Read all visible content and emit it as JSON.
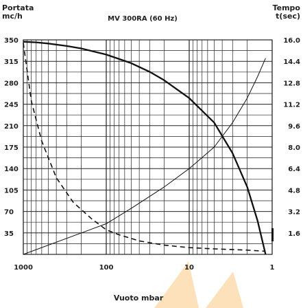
{
  "chart_data": {
    "type": "line",
    "title": "MV 300RA (60 Hz)",
    "y_left_label": [
      "Portata",
      "mc/h"
    ],
    "y_right_label": [
      "Tempo",
      "t(sec)"
    ],
    "xlabel": "Vuoto mbar",
    "x_scale": "log",
    "x_reversed": true,
    "xlim": [
      1000,
      1
    ],
    "ylim_left": [
      0,
      350
    ],
    "ylim_right": [
      0,
      16
    ],
    "x_tick_labels": [
      "1000",
      "100",
      "10",
      "1"
    ],
    "y_left_tick_labels": [
      "350",
      "315",
      "280",
      "245",
      "210",
      "175",
      "140",
      "105",
      "70",
      "35"
    ],
    "y_right_tick_labels": [
      "16.0",
      "14.4",
      "12.8",
      "11.2",
      "9.6",
      "8.0",
      "6.4",
      "4.8",
      "3.2",
      "1.6"
    ],
    "grid": true,
    "series": [
      {
        "axis": "left",
        "style": "solid",
        "x": [
          1000,
          700,
          500,
          300,
          200,
          100,
          50,
          30,
          20,
          10,
          5,
          3,
          2,
          1.5,
          1.2
        ],
        "y": [
          347,
          346,
          344,
          340,
          336,
          326,
          312,
          298,
          284,
          255,
          215,
          165,
          110,
          55,
          0
        ]
      },
      {
        "axis": "left",
        "style": "thin",
        "x": [
          1000,
          100,
          50,
          20,
          10,
          5,
          3,
          2,
          1.5,
          1.2
        ],
        "y": [
          0,
          50,
          75,
          110,
          140,
          175,
          215,
          255,
          290,
          320
        ]
      },
      {
        "axis": "left",
        "style": "dashed",
        "x": [
          1000,
          800,
          600,
          400,
          250,
          150,
          100,
          70,
          40,
          20,
          10,
          5,
          2,
          1.2
        ],
        "y": [
          345,
          250,
          185,
          125,
          85,
          58,
          40,
          32,
          22,
          15,
          11,
          9,
          7,
          5
        ]
      }
    ]
  }
}
